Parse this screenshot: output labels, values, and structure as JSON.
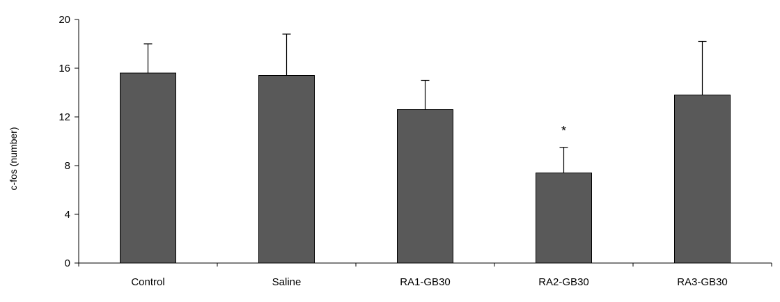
{
  "chart_data": {
    "type": "bar",
    "title": "",
    "xlabel": "",
    "ylabel": "c-fos (number)",
    "ylim": [
      0,
      20
    ],
    "yticks": [
      0,
      4,
      8,
      12,
      16,
      20
    ],
    "grid": false,
    "categories": [
      "Control",
      "Saline",
      "RA1-GB30",
      "RA2-GB30",
      "RA3-GB30"
    ],
    "values": [
      15.6,
      15.4,
      12.6,
      7.4,
      13.8
    ],
    "error_upper": [
      2.4,
      3.4,
      2.4,
      2.1,
      4.4
    ],
    "annotations": [
      {
        "category": "RA2-GB30",
        "text": "*"
      }
    ],
    "bar_color": "#595959"
  }
}
